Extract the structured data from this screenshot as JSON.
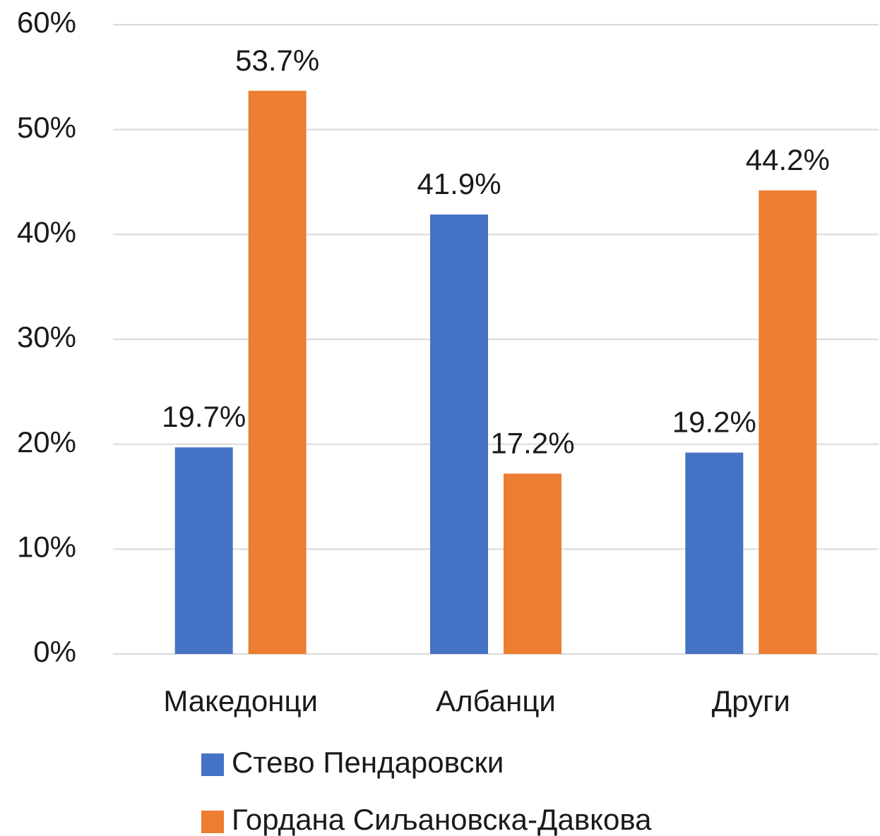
{
  "chart_data": {
    "type": "bar",
    "categories": [
      "Македонци",
      "Албанци",
      "Други"
    ],
    "series": [
      {
        "name": "Стево Пендаровски",
        "color": "#4472c4",
        "values": [
          19.7,
          41.9,
          19.2
        ],
        "value_labels": [
          "19.7%",
          "41.9%",
          "19.2%"
        ]
      },
      {
        "name": "Гордана Сиљановска-Давкова",
        "color": "#ed7d31",
        "values": [
          53.7,
          17.2,
          44.2
        ],
        "value_labels": [
          "53.7%",
          "17.2%",
          "44.2%"
        ]
      }
    ],
    "ylim": [
      0,
      60
    ],
    "yticks": [
      {
        "value": 0,
        "label": "0%"
      },
      {
        "value": 10,
        "label": "10%"
      },
      {
        "value": 20,
        "label": "20%"
      },
      {
        "value": 30,
        "label": "30%"
      },
      {
        "value": 40,
        "label": "40%"
      },
      {
        "value": 50,
        "label": "50%"
      },
      {
        "value": 60,
        "label": "60%"
      }
    ],
    "grid": true,
    "legend": "bottom"
  }
}
